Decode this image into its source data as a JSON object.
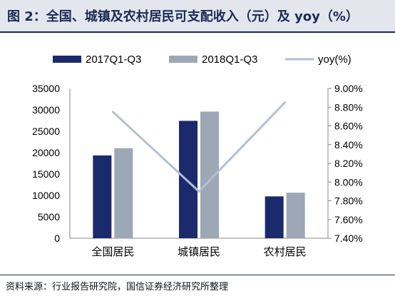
{
  "title": "图 2：全国、城镇及农村居民可支配收入（元）及 yoy（%）",
  "source": "资料来源：行业报告研究院，国信证券经济研究所整理",
  "colors": {
    "series_2017": "#1b2a6b",
    "series_2018": "#9ea7b5",
    "yoy_line": "#b5bfd3",
    "title_bg": "#e3e7ed",
    "title_text": "#1b2a55"
  },
  "chart_data": {
    "type": "bar",
    "categories": [
      "全国居民",
      "城镇居民",
      "农村居民"
    ],
    "series": [
      {
        "name": "2017Q1-Q3",
        "type": "bar",
        "axis": "left",
        "values": [
          19342,
          27430,
          9778
        ]
      },
      {
        "name": "2018Q1-Q3",
        "type": "bar",
        "axis": "left",
        "values": [
          21035,
          29599,
          10645
        ]
      },
      {
        "name": "yoy(%)",
        "type": "line",
        "axis": "right",
        "values": [
          8.75,
          7.9,
          8.85
        ]
      }
    ],
    "y_left": {
      "min": 0,
      "max": 35000,
      "step": 5000,
      "ticks": [
        "0",
        "5000",
        "10000",
        "15000",
        "20000",
        "25000",
        "30000",
        "35000"
      ]
    },
    "y_right": {
      "min": 7.4,
      "max": 9.0,
      "step": 0.2,
      "ticks": [
        "7.40%",
        "7.60%",
        "7.80%",
        "8.00%",
        "8.20%",
        "8.40%",
        "8.60%",
        "8.80%",
        "9.00%"
      ]
    },
    "legend_position": "top",
    "grid": false
  }
}
